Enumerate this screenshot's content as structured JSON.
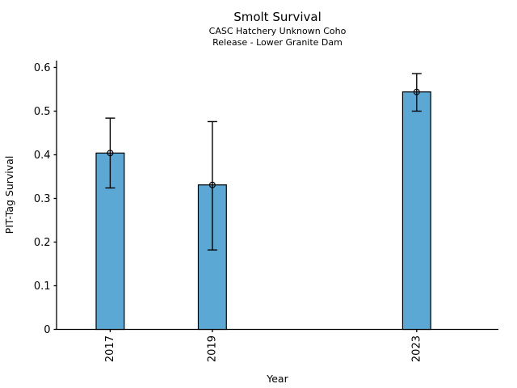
{
  "chart_data": {
    "type": "bar",
    "title": "Smolt Survival",
    "subtitle_line1": "CASC Hatchery Unknown Coho",
    "subtitle_line2": "Release - Lower Granite Dam",
    "xlabel": "Year",
    "ylabel": "PIT-Tag Survival",
    "categories": [
      "2017",
      "2019",
      "2023"
    ],
    "x_values": [
      2017,
      2019,
      2023
    ],
    "values": [
      0.404,
      0.331,
      0.544
    ],
    "error_low": [
      0.324,
      0.182,
      0.5
    ],
    "error_high": [
      0.484,
      0.476,
      0.586
    ],
    "ytick_values": [
      0,
      0.1,
      0.2,
      0.3,
      0.4,
      0.5,
      0.6
    ],
    "ytick_labels": [
      "0",
      "0.1",
      "0.2",
      "0.3",
      "0.4",
      "0.5",
      "0.6"
    ],
    "xtick_rotation_deg": 90,
    "ylim": [
      0,
      0.6157
    ],
    "xlim": [
      2015.95,
      2024.6
    ],
    "bar_width_x_units": 0.55,
    "bar_color": "#5BA8D4",
    "bar_edge_color": "#000000",
    "error_bar_color": "#000000",
    "marker": "open-circle",
    "grid": false,
    "legend": null
  }
}
